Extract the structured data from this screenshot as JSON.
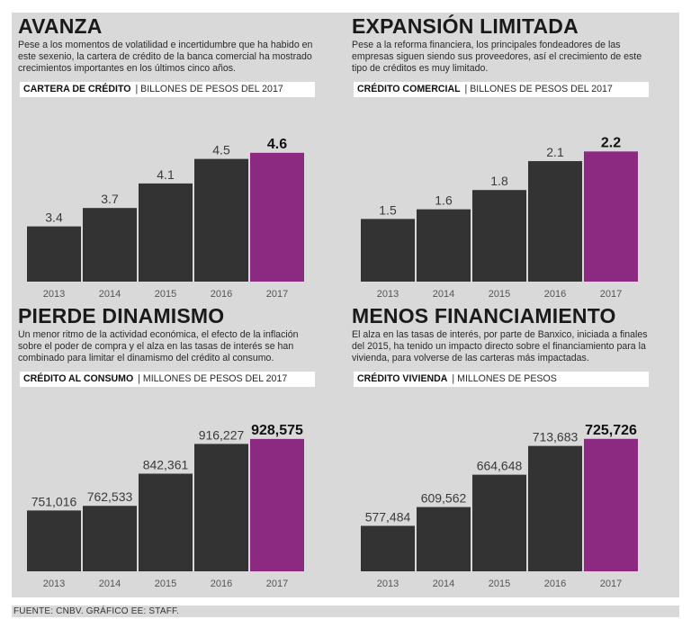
{
  "colors": {
    "bar": "#333333",
    "highlight": "#8b2a80",
    "background": "#d9d9da"
  },
  "source": "FUENTE: CNBV. GRÁFICO EE: STAFF.",
  "chart_data": [
    {
      "type": "bar",
      "title": "AVANZA",
      "description": "Pese a los momentos de volatilidad e incertidumbre que ha habido en este sexenio, la cartera de crédito de la banca comercial ha mostrado crecimientos importantes en los últimos cinco años.",
      "subtitle_bold": "CARTERA DE CRÉDITO",
      "subtitle_rest": "| BILLONES DE PESOS DEL 2017",
      "categories": [
        "2013",
        "2014",
        "2015",
        "2016",
        "2017"
      ],
      "values": [
        3.4,
        3.7,
        4.1,
        4.5,
        4.6
      ],
      "labels": [
        "3.4",
        "3.7",
        "4.1",
        "4.5",
        "4.6"
      ],
      "highlight_index": 4,
      "ylim": [
        2.5,
        4.7
      ]
    },
    {
      "type": "bar",
      "title": "EXPANSIÓN LIMITADA",
      "description": "Pese a la reforma financiera, los principales fondeadores de las empresas siguen siendo sus proveedores, así el crecimiento de este tipo de créditos es muy limitado.",
      "subtitle_bold": "CRÉDITO COMERCIAL",
      "subtitle_rest": "| BILLONES DE PESOS DEL 2017",
      "categories": [
        "2013",
        "2014",
        "2015",
        "2016",
        "2017"
      ],
      "values": [
        1.5,
        1.6,
        1.8,
        2.1,
        2.2
      ],
      "labels": [
        "1.5",
        "1.6",
        "1.8",
        "2.1",
        "2.2"
      ],
      "highlight_index": 4,
      "ylim": [
        0.85,
        2.25
      ]
    },
    {
      "type": "bar",
      "title": "PIERDE DINAMISMO",
      "description": "Un menor ritmo de la actividad económica, el efecto de la inflación sobre el poder de compra y el alza en las tasas de interés se han combinado para limitar el dinamismo del crédito al consumo.",
      "subtitle_bold": "CRÉDITO AL CONSUMO",
      "subtitle_rest": "| MILLONES DE PESOS DEL 2017",
      "categories": [
        "2013",
        "2014",
        "2015",
        "2016",
        "2017"
      ],
      "values": [
        751016,
        762533,
        842361,
        916227,
        928575
      ],
      "labels": [
        "751,016",
        "762,533",
        "842,361",
        "916,227",
        "928,575"
      ],
      "highlight_index": 4,
      "ylim": [
        600000,
        935000
      ]
    },
    {
      "type": "bar",
      "title": "MENOS FINANCIAMIENTO",
      "description": "El alza en las tasas de interés, por parte de Banxico, iniciada a finales del 2015, ha tenido un impacto directo sobre el financiamiento para la vivienda, para volverse de las carteras más impactadas.",
      "subtitle_bold": "CRÉDITO VIVIENDA",
      "subtitle_rest": "| MILLONES DE PESOS",
      "categories": [
        "2013",
        "2014",
        "2015",
        "2016",
        "2017"
      ],
      "values": [
        577484,
        609562,
        664648,
        713683,
        725726
      ],
      "labels": [
        "577,484",
        "609,562",
        "664,648",
        "713,683",
        "725,726"
      ],
      "highlight_index": 4,
      "ylim": [
        500000,
        730000
      ]
    }
  ]
}
